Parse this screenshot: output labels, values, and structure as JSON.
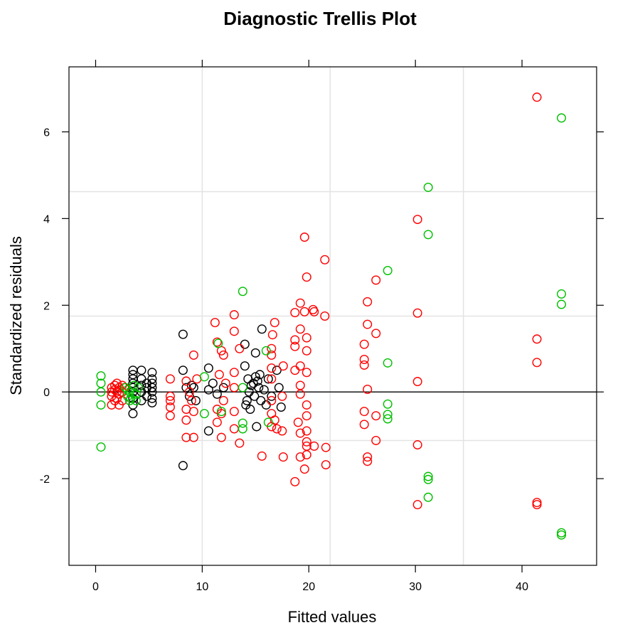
{
  "chart_data": {
    "type": "scatter",
    "title": "Diagnostic Trellis Plot",
    "xlabel": "Fitted values",
    "ylabel": "Standardized residuals",
    "xlim": [
      -2.5,
      47
    ],
    "ylim": [
      -4,
      7.5
    ],
    "xticks": [
      0,
      10,
      20,
      30,
      40
    ],
    "yticks": [
      -2,
      0,
      2,
      4,
      6
    ],
    "xtick_labels": [
      "0",
      "10",
      "20",
      "30",
      "40"
    ],
    "ytick_labels": [
      "-2",
      "0",
      "2",
      "4",
      "6"
    ],
    "reference_line_y": 0,
    "grid_x": [
      10,
      22,
      34.5
    ],
    "grid_y": [
      -1.12,
      1.75,
      4.62
    ],
    "legend": "none",
    "series": [
      {
        "color": "#000000",
        "points": [
          [
            3.5,
            -0.5
          ],
          [
            3.5,
            -0.3
          ],
          [
            3.5,
            -0.15
          ],
          [
            3.5,
            0.0
          ],
          [
            3.5,
            0.1
          ],
          [
            3.5,
            0.2
          ],
          [
            3.5,
            0.3
          ],
          [
            3.5,
            0.4
          ],
          [
            3.5,
            0.5
          ],
          [
            4.3,
            -0.2
          ],
          [
            4.3,
            0.0
          ],
          [
            4.3,
            0.15
          ],
          [
            4.3,
            0.3
          ],
          [
            4.3,
            0.5
          ],
          [
            4.8,
            -0.1
          ],
          [
            4.8,
            0.1
          ],
          [
            4.8,
            0.2
          ],
          [
            5.3,
            -0.25
          ],
          [
            5.3,
            -0.15
          ],
          [
            5.3,
            0.0
          ],
          [
            5.3,
            0.1
          ],
          [
            5.3,
            0.2
          ],
          [
            5.3,
            0.3
          ],
          [
            5.3,
            0.45
          ],
          [
            8.2,
            1.33
          ],
          [
            8.2,
            0.5
          ],
          [
            8.2,
            -1.7
          ],
          [
            8.5,
            0.1
          ],
          [
            8.8,
            -0.1
          ],
          [
            9.0,
            0.15
          ],
          [
            9.2,
            0.1
          ],
          [
            9.4,
            -0.2
          ],
          [
            10.6,
            0.55
          ],
          [
            10.6,
            0.05
          ],
          [
            10.6,
            -0.9
          ],
          [
            11.0,
            0.2
          ],
          [
            11.4,
            -0.05
          ],
          [
            12.0,
            0.1
          ],
          [
            14.0,
            1.1
          ],
          [
            14.0,
            0.6
          ],
          [
            14.1,
            -0.3
          ],
          [
            14.2,
            -0.2
          ],
          [
            14.3,
            0.3
          ],
          [
            14.4,
            0.0
          ],
          [
            14.5,
            -0.4
          ],
          [
            14.6,
            0.15
          ],
          [
            14.8,
            0.2
          ],
          [
            14.9,
            -0.1
          ],
          [
            15.0,
            0.35
          ],
          [
            15.0,
            0.9
          ],
          [
            15.1,
            -0.8
          ],
          [
            15.2,
            0.25
          ],
          [
            15.3,
            0.1
          ],
          [
            15.4,
            0.4
          ],
          [
            15.5,
            -0.2
          ],
          [
            15.6,
            1.45
          ],
          [
            15.8,
            0.05
          ],
          [
            16.0,
            -0.3
          ],
          [
            16.2,
            0.3
          ],
          [
            16.5,
            -0.1
          ],
          [
            17.0,
            0.5
          ],
          [
            17.2,
            0.1
          ],
          [
            17.4,
            -0.35
          ]
        ]
      },
      {
        "color": "#ff0000",
        "points": [
          [
            1.5,
            -0.3
          ],
          [
            1.5,
            -0.1
          ],
          [
            1.5,
            0.0
          ],
          [
            1.5,
            0.1
          ],
          [
            1.8,
            -0.2
          ],
          [
            1.8,
            0.05
          ],
          [
            1.8,
            0.15
          ],
          [
            2.0,
            -0.15
          ],
          [
            2.0,
            0.0
          ],
          [
            2.0,
            0.2
          ],
          [
            2.2,
            -0.3
          ],
          [
            2.2,
            -0.05
          ],
          [
            2.2,
            0.1
          ],
          [
            2.5,
            -0.2
          ],
          [
            2.5,
            0.0
          ],
          [
            2.5,
            0.15
          ],
          [
            2.7,
            0.1
          ],
          [
            7.0,
            0.3
          ],
          [
            7.0,
            -0.1
          ],
          [
            7.0,
            -0.35
          ],
          [
            7.0,
            -0.55
          ],
          [
            7.0,
            -0.2
          ],
          [
            8.5,
            0.25
          ],
          [
            8.5,
            -0.4
          ],
          [
            8.5,
            -0.65
          ],
          [
            8.5,
            -1.05
          ],
          [
            8.8,
            0.0
          ],
          [
            9.0,
            -0.2
          ],
          [
            9.2,
            0.85
          ],
          [
            9.2,
            -0.45
          ],
          [
            9.2,
            -1.05
          ],
          [
            9.5,
            0.3
          ],
          [
            11.2,
            1.6
          ],
          [
            11.4,
            1.15
          ],
          [
            11.4,
            -0.4
          ],
          [
            11.4,
            -0.7
          ],
          [
            11.6,
            0.4
          ],
          [
            11.8,
            0.95
          ],
          [
            11.8,
            -0.5
          ],
          [
            11.8,
            -1.05
          ],
          [
            12.0,
            0.85
          ],
          [
            12.0,
            -0.2
          ],
          [
            12.2,
            0.2
          ],
          [
            13.0,
            1.78
          ],
          [
            13.0,
            1.4
          ],
          [
            13.0,
            0.45
          ],
          [
            13.0,
            0.1
          ],
          [
            13.0,
            -0.45
          ],
          [
            13.0,
            -0.85
          ],
          [
            13.5,
            1.0
          ],
          [
            13.5,
            -1.18
          ],
          [
            15.6,
            -1.48
          ],
          [
            16.5,
            1.0
          ],
          [
            16.5,
            0.85
          ],
          [
            16.5,
            0.55
          ],
          [
            16.5,
            0.3
          ],
          [
            16.5,
            -0.2
          ],
          [
            16.5,
            -0.5
          ],
          [
            16.5,
            -0.8
          ],
          [
            16.6,
            1.32
          ],
          [
            16.8,
            1.6
          ],
          [
            16.8,
            -0.65
          ],
          [
            17.0,
            -0.85
          ],
          [
            17.5,
            -0.1
          ],
          [
            17.5,
            -0.9
          ],
          [
            17.6,
            0.6
          ],
          [
            17.6,
            -1.5
          ],
          [
            18.7,
            1.83
          ],
          [
            18.7,
            1.2
          ],
          [
            18.7,
            1.05
          ],
          [
            18.7,
            0.5
          ],
          [
            18.7,
            -2.07
          ],
          [
            19.0,
            -0.7
          ],
          [
            19.2,
            2.05
          ],
          [
            19.2,
            1.45
          ],
          [
            19.2,
            0.6
          ],
          [
            19.2,
            0.15
          ],
          [
            19.2,
            -0.05
          ],
          [
            19.2,
            -0.95
          ],
          [
            19.2,
            -1.5
          ],
          [
            19.6,
            3.57
          ],
          [
            19.6,
            1.85
          ],
          [
            19.6,
            -1.78
          ],
          [
            19.8,
            2.65
          ],
          [
            19.8,
            1.25
          ],
          [
            19.8,
            0.95
          ],
          [
            19.8,
            0.45
          ],
          [
            19.8,
            -0.3
          ],
          [
            19.8,
            -0.55
          ],
          [
            19.8,
            -0.9
          ],
          [
            19.8,
            -1.15
          ],
          [
            19.8,
            -1.25
          ],
          [
            19.8,
            -1.45
          ],
          [
            20.4,
            1.9
          ],
          [
            20.5,
            1.85
          ],
          [
            20.5,
            -1.25
          ],
          [
            21.5,
            3.05
          ],
          [
            21.5,
            1.75
          ],
          [
            21.6,
            -1.28
          ],
          [
            21.6,
            -1.68
          ],
          [
            25.2,
            1.1
          ],
          [
            25.2,
            0.75
          ],
          [
            25.2,
            0.62
          ],
          [
            25.2,
            -0.45
          ],
          [
            25.2,
            -0.75
          ],
          [
            25.5,
            2.08
          ],
          [
            25.5,
            1.56
          ],
          [
            25.5,
            0.06
          ],
          [
            25.5,
            -1.5
          ],
          [
            25.5,
            -1.6
          ],
          [
            26.3,
            2.58
          ],
          [
            26.3,
            1.35
          ],
          [
            26.3,
            -0.55
          ],
          [
            26.3,
            -1.12
          ],
          [
            30.2,
            3.98
          ],
          [
            30.2,
            1.82
          ],
          [
            30.2,
            0.24
          ],
          [
            30.2,
            -1.22
          ],
          [
            30.2,
            -2.6
          ],
          [
            41.4,
            6.8
          ],
          [
            41.4,
            1.22
          ],
          [
            41.4,
            0.68
          ],
          [
            41.4,
            -2.55
          ],
          [
            41.4,
            -2.6
          ]
        ]
      },
      {
        "color": "#00c000",
        "points": [
          [
            0.5,
            0.37
          ],
          [
            0.5,
            0.2
          ],
          [
            0.5,
            0.0
          ],
          [
            0.5,
            -0.3
          ],
          [
            0.5,
            -1.27
          ],
          [
            2.8,
            0.1
          ],
          [
            3.0,
            -0.1
          ],
          [
            3.0,
            0.05
          ],
          [
            3.2,
            -0.2
          ],
          [
            3.2,
            0.0
          ],
          [
            3.3,
            -0.15
          ],
          [
            3.6,
            0.15
          ],
          [
            3.8,
            -0.05
          ],
          [
            3.8,
            -0.2
          ],
          [
            4.0,
            0.1
          ],
          [
            10.2,
            0.35
          ],
          [
            10.2,
            -0.5
          ],
          [
            11.5,
            1.12
          ],
          [
            11.8,
            -0.45
          ],
          [
            13.8,
            2.32
          ],
          [
            13.8,
            0.1
          ],
          [
            13.8,
            -0.72
          ],
          [
            13.8,
            -0.85
          ],
          [
            16.0,
            0.95
          ],
          [
            16.2,
            -0.7
          ],
          [
            27.4,
            2.8
          ],
          [
            27.4,
            0.67
          ],
          [
            27.4,
            -0.28
          ],
          [
            27.4,
            -0.52
          ],
          [
            27.4,
            -0.62
          ],
          [
            31.2,
            4.72
          ],
          [
            31.2,
            3.63
          ],
          [
            31.2,
            -1.95
          ],
          [
            31.2,
            -2.02
          ],
          [
            31.2,
            -2.43
          ],
          [
            43.7,
            6.32
          ],
          [
            43.7,
            2.26
          ],
          [
            43.7,
            2.02
          ],
          [
            43.7,
            -3.25
          ],
          [
            43.7,
            -3.3
          ]
        ]
      }
    ]
  }
}
